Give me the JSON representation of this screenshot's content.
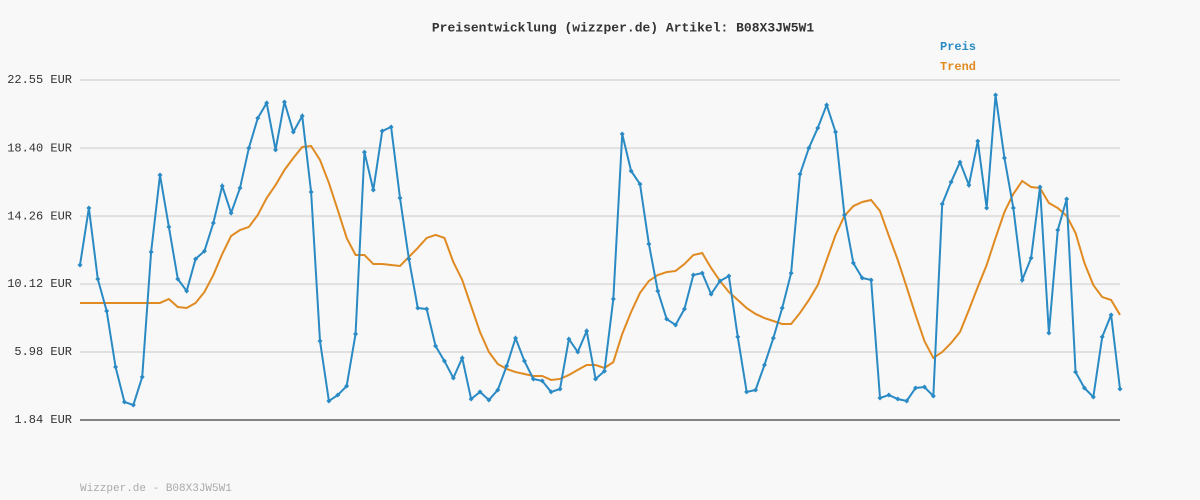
{
  "chart_data": {
    "type": "line",
    "title": "Preisentwicklung (wizzper.de) Artikel: B08X3JW5W1",
    "categories": [
      null,
      null,
      null,
      null,
      null,
      null,
      null,
      null,
      null,
      null,
      null,
      null,
      null,
      null,
      null,
      null,
      null,
      null,
      null,
      null,
      null,
      null,
      null,
      null,
      null,
      null,
      null,
      null,
      null,
      null,
      null,
      null,
      null,
      null,
      null,
      null,
      null,
      null,
      null,
      null,
      null,
      null,
      null,
      null,
      null,
      null,
      null,
      null,
      null,
      null,
      null,
      null,
      null,
      null,
      null,
      null,
      null,
      null,
      null,
      null,
      null,
      null,
      null,
      null,
      null,
      null,
      null,
      null,
      null,
      null,
      null,
      null,
      null,
      null,
      null,
      null,
      null,
      null,
      null,
      null,
      null,
      null,
      null,
      null,
      null,
      null,
      null,
      null,
      null,
      null,
      null,
      null,
      null,
      null,
      null,
      null,
      null,
      null,
      null,
      null,
      null,
      null,
      null,
      null,
      null,
      null,
      null,
      null,
      null,
      null,
      null,
      null,
      null,
      null,
      null,
      null,
      null,
      null
    ],
    "series": [
      {
        "name": "Preis",
        "color": "#2a8ac4",
        "values": [
          11.28,
          14.75,
          10.43,
          8.48,
          5.07,
          2.94,
          2.75,
          4.46,
          12.07,
          16.76,
          13.6,
          10.43,
          9.7,
          11.65,
          12.13,
          13.84,
          16.09,
          14.45,
          15.97,
          18.41,
          20.23,
          21.15,
          18.29,
          21.21,
          19.38,
          20.36,
          15.73,
          6.65,
          3.0,
          3.36,
          3.91,
          7.08,
          18.16,
          15.85,
          19.44,
          19.69,
          15.36,
          11.65,
          8.66,
          8.6,
          6.35,
          5.43,
          4.4,
          5.62,
          3.12,
          3.55,
          3.06,
          3.67,
          5.13,
          6.83,
          5.43,
          4.34,
          4.22,
          3.55,
          3.73,
          6.77,
          5.98,
          7.26,
          4.34,
          4.82,
          9.21,
          19.26,
          17.01,
          16.21,
          12.56,
          9.7,
          7.99,
          7.63,
          8.6,
          10.67,
          10.79,
          9.51,
          10.31,
          10.61,
          6.9,
          3.55,
          3.67,
          5.19,
          6.83,
          8.66,
          10.79,
          16.82,
          18.41,
          19.63,
          21.03,
          19.38,
          14.33,
          11.4,
          10.49,
          10.37,
          3.18,
          3.36,
          3.12,
          3.0,
          3.79,
          3.85,
          3.3,
          15.0,
          16.34,
          17.55,
          16.15,
          18.83,
          14.75,
          21.64,
          17.8,
          14.75,
          10.37,
          11.71,
          16.03,
          7.14,
          13.41,
          15.3,
          4.76,
          3.79,
          3.24,
          6.9,
          8.24,
          3.73
        ]
      },
      {
        "name": "Trend",
        "color": "#e08a22",
        "values": [
          8.97,
          8.97,
          8.97,
          8.97,
          8.97,
          8.97,
          8.97,
          8.97,
          8.97,
          8.97,
          9.21,
          8.72,
          8.66,
          8.97,
          9.64,
          10.67,
          11.95,
          13.05,
          13.41,
          13.6,
          14.33,
          15.36,
          16.15,
          17.07,
          17.8,
          18.47,
          18.53,
          17.68,
          16.28,
          14.63,
          12.93,
          11.89,
          11.89,
          11.34,
          11.34,
          11.28,
          11.22,
          11.77,
          12.32,
          12.93,
          13.11,
          12.93,
          11.46,
          10.37,
          8.78,
          7.2,
          5.98,
          5.25,
          4.95,
          4.76,
          4.64,
          4.52,
          4.52,
          4.28,
          4.34,
          4.58,
          4.89,
          5.19,
          5.19,
          5.01,
          5.37,
          7.08,
          8.42,
          9.58,
          10.31,
          10.67,
          10.85,
          10.92,
          11.34,
          11.89,
          12.01,
          11.1,
          10.31,
          9.64,
          9.15,
          8.66,
          8.3,
          8.05,
          7.87,
          7.69,
          7.69,
          8.36,
          9.15,
          10.06,
          11.59,
          13.11,
          14.27,
          14.87,
          15.12,
          15.24,
          14.57,
          13.05,
          11.59,
          9.94,
          8.24,
          6.65,
          5.62,
          5.98,
          6.53,
          7.2,
          8.54,
          9.94,
          11.28,
          12.93,
          14.51,
          15.61,
          16.4,
          16.03,
          15.97,
          15.06,
          14.75,
          14.27,
          13.23,
          11.4,
          10.06,
          9.33,
          9.15,
          8.24
        ]
      }
    ],
    "ylim": [
      1.84,
      22.55
    ],
    "yticks": [
      {
        "value": 1.84,
        "label": "1.84 EUR"
      },
      {
        "value": 5.98,
        "label": "5.98 EUR"
      },
      {
        "value": 10.12,
        "label": "10.12 EUR"
      },
      {
        "value": 14.26,
        "label": "14.26 EUR"
      },
      {
        "value": 18.4,
        "label": "18.40 EUR"
      },
      {
        "value": 22.55,
        "label": "22.55 EUR"
      }
    ],
    "grid": true,
    "legend": "top-right",
    "markers": true
  },
  "footer": "Wizzper.de - B08X3JW5W1"
}
